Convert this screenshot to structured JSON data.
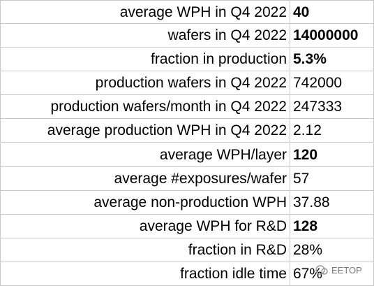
{
  "table": {
    "rows": [
      {
        "label": "average WPH in Q4 2022",
        "value": "40",
        "bold": true
      },
      {
        "label": "wafers in Q4 2022",
        "value": "14000000",
        "bold": true
      },
      {
        "label": "fraction in production",
        "value": "5.3%",
        "bold": true
      },
      {
        "label": "production wafers in Q4 2022",
        "value": "742000",
        "bold": false
      },
      {
        "label": "production wafers/month in Q4 2022",
        "value": "247333",
        "bold": false
      },
      {
        "label": "average production WPH in Q4 2022",
        "value": "2.12",
        "bold": false
      },
      {
        "label": "average WPH/layer",
        "value": "120",
        "bold": true
      },
      {
        "label": "average #exposures/wafer",
        "value": "57",
        "bold": false
      },
      {
        "label": "average non-production WPH",
        "value": "37.88",
        "bold": false
      },
      {
        "label": "average WPH for R&D",
        "value": "128",
        "bold": true
      },
      {
        "label": "fraction in R&D",
        "value": "28%",
        "bold": false
      },
      {
        "label": "fraction idle time",
        "value": "67%",
        "bold": false
      }
    ]
  },
  "watermark": "EETOP"
}
